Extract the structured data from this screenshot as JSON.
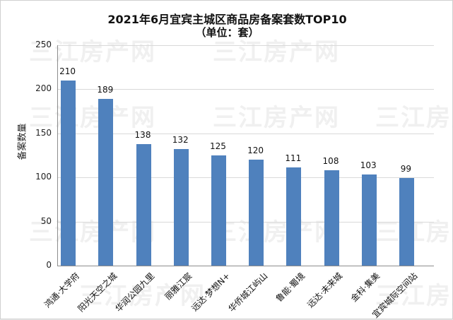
{
  "chart_data": {
    "type": "bar",
    "title": "2021年6月宜宾主城区商品房备案套数TOP10",
    "subtitle": "（单位：套）",
    "xlabel": "",
    "ylabel": "备案数量",
    "ylim": [
      0,
      250
    ],
    "yticks": [
      0,
      50,
      100,
      150,
      200,
      250
    ],
    "grid": true,
    "legend": "none",
    "categories": [
      "鸿通·大学府",
      "阳光天空之城",
      "华润公园九里",
      "丽雅江宸",
      "远达·梦想N+",
      "华侨城江屿山",
      "鲁能·蜀境",
      "远达·未来城",
      "金科·集美",
      "宜宾城际空间站"
    ],
    "values": [
      210,
      189,
      138,
      132,
      125,
      120,
      111,
      108,
      103,
      99
    ],
    "bar_color": "#4f81bd"
  },
  "header": {
    "title": "2021年6月宜宾主城区商品房备案套数TOP10",
    "subtitle": "（单位：套）"
  },
  "axis": {
    "ylabel": "备案数量",
    "ticks": [
      "0",
      "50",
      "100",
      "150",
      "200",
      "250"
    ]
  },
  "watermark": "三江房产网"
}
